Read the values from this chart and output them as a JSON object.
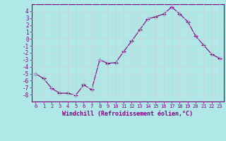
{
  "x": [
    0,
    1,
    2,
    3,
    4,
    5,
    6,
    7,
    8,
    9,
    10,
    11,
    12,
    13,
    14,
    15,
    16,
    17,
    18,
    19,
    20,
    21,
    22,
    23
  ],
  "y": [
    -5.0,
    -5.7,
    -7.1,
    -7.8,
    -7.8,
    -8.1,
    -6.6,
    -7.3,
    -3.0,
    -3.5,
    -3.4,
    -1.8,
    -0.3,
    1.3,
    2.9,
    3.2,
    3.6,
    4.6,
    3.6,
    2.5,
    0.4,
    -0.9,
    -2.2,
    -2.8
  ],
  "line_color": "#800080",
  "marker_color": "#800080",
  "bg_color": "#b0e8e8",
  "grid_color": "#c0d8d8",
  "xlabel": "Windchill (Refroidissement éolien,°C)",
  "xlim": [
    -0.5,
    23.5
  ],
  "ylim": [
    -9,
    5
  ],
  "yticks": [
    -8,
    -7,
    -6,
    -5,
    -4,
    -3,
    -2,
    -1,
    0,
    1,
    2,
    3,
    4
  ],
  "xticks": [
    0,
    1,
    2,
    3,
    4,
    5,
    6,
    7,
    8,
    9,
    10,
    11,
    12,
    13,
    14,
    15,
    16,
    17,
    18,
    19,
    20,
    21,
    22,
    23
  ],
  "tick_color": "#800080",
  "label_color": "#800080",
  "spine_color": "#800080"
}
